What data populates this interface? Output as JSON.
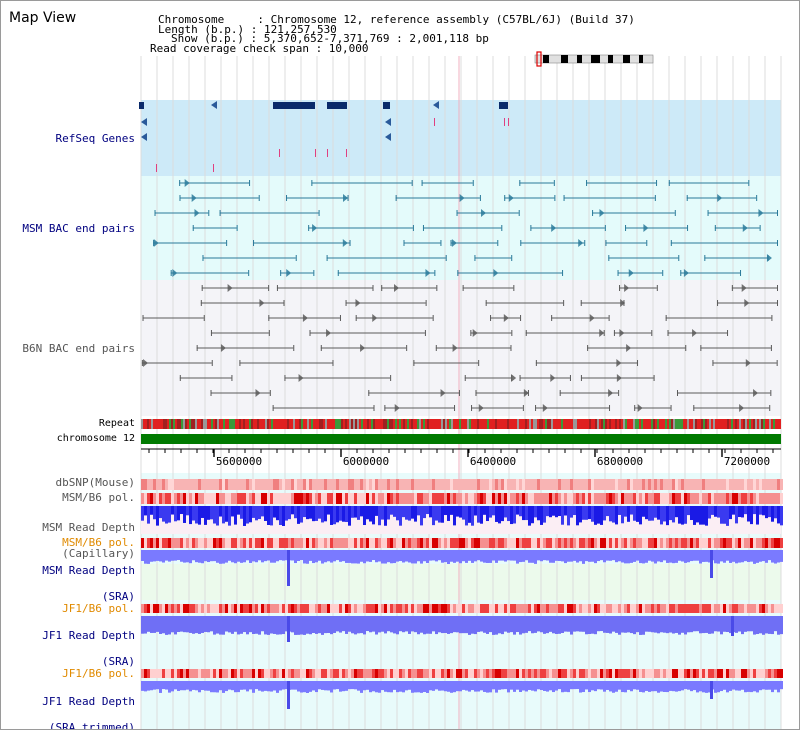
{
  "title": "Map View",
  "info": {
    "chromosome": "Chromosome     : Chromosome 12, reference assembly (C57BL/6J) (Build 37)",
    "length": "Length (b.p.) : 121,257,530",
    "show": "Show (b.p.) : 5,370,652-7,371,769 : 2,001,118 bp",
    "span": "Read coverage check span : 10,000"
  },
  "tracks": {
    "refseq": "RefSeq Genes",
    "msm_bac": "MSM BAC end pairs",
    "b6n_bac": "B6N BAC end pairs",
    "repeat": "Repeat",
    "chromosome": "chromosome 12",
    "dbsnp": "dbSNP(Mouse)",
    "msm_b6_pol_1": "MSM/B6 pol.",
    "msm_depth_cap_1": "MSM Read Depth",
    "msm_depth_cap_2": "(Capillary)",
    "msm_b6_pol_2": "MSM/B6 pol.",
    "msm_depth_sra_1": "MSM Read Depth",
    "msm_depth_sra_2": "(SRA)",
    "jf1_b6_pol_1": "JF1/B6 pol.",
    "jf1_depth_sra_1": "JF1 Read Depth",
    "jf1_depth_sra_2": "(SRA)",
    "jf1_b6_pol_2": "JF1/B6 pol.",
    "jf1_depth_trim_1": "JF1 Read Depth",
    "jf1_depth_trim_2": "(SRA trimmed)"
  },
  "axis": {
    "ticks": [
      "5600000",
      "6000000",
      "6400000",
      "6800000",
      "7200000"
    ]
  },
  "colors": {
    "navy": "#000080",
    "orange": "#e08a00",
    "gray_label": "#555555",
    "refseq_bg": "#cdeaf8",
    "msm_bg": "#e4fbfb",
    "b6n_bg": "#f4f4f8",
    "chrom_green": "#007a00",
    "depth_blue": "#1a1ae6",
    "depth_light": "#7a7aff"
  }
}
